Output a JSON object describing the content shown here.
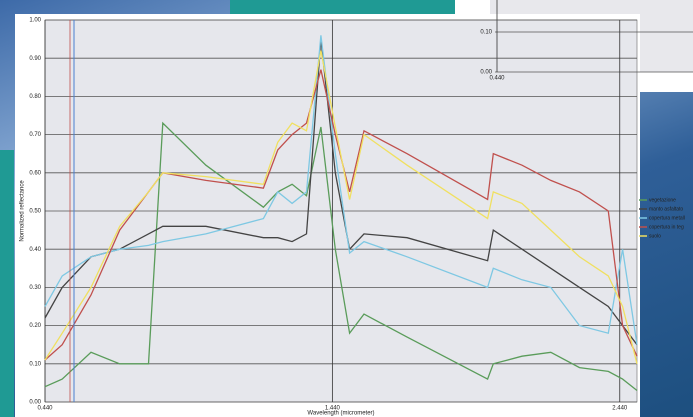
{
  "chart_data": [
    {
      "type": "line",
      "y_label": "Normalized reflectance",
      "x_label": "Wavelength (micrometer)",
      "x": [
        0.44,
        0.5,
        0.6,
        0.7,
        0.8,
        0.85,
        1.0,
        1.2,
        1.25,
        1.3,
        1.35,
        1.4,
        1.45,
        1.5,
        1.55,
        1.7,
        1.98,
        2.0,
        2.1,
        2.2,
        2.3,
        2.4,
        2.45,
        2.5
      ],
      "xlim": [
        0.44,
        2.5
      ],
      "xticks": [
        {
          "value": 0.44,
          "label": "0.440"
        },
        {
          "value": 1.44,
          "label": "1.440"
        },
        {
          "value": 2.44,
          "label": "2.440"
        }
      ],
      "ylim": [
        0,
        1
      ],
      "yticks": [
        {
          "value": 0,
          "label": "0.00"
        },
        {
          "value": 0.1,
          "label": "0.10"
        },
        {
          "value": 0.2,
          "label": "0.20"
        },
        {
          "value": 0.3,
          "label": "0.30"
        },
        {
          "value": 0.4,
          "label": "0.40"
        },
        {
          "value": 0.5,
          "label": "0.50"
        },
        {
          "value": 0.6,
          "label": "0.60"
        },
        {
          "value": 0.7,
          "label": "0.70"
        },
        {
          "value": 0.8,
          "label": "0.80"
        },
        {
          "value": 0.9,
          "label": "0.90"
        },
        {
          "value": 1,
          "label": "1.00"
        }
      ],
      "grid": true,
      "legend": "right",
      "series": [
        {
          "name": "vegetazione",
          "color": "#5a9c5a",
          "values": [
            0.04,
            0.06,
            0.13,
            0.1,
            0.1,
            0.73,
            0.62,
            0.51,
            0.55,
            0.57,
            0.54,
            0.72,
            0.4,
            0.18,
            0.23,
            0.17,
            0.06,
            0.1,
            0.12,
            0.13,
            0.09,
            0.08,
            0.06,
            0.03
          ]
        },
        {
          "name": "manto asfaltato",
          "color": "#444444",
          "values": [
            0.22,
            0.3,
            0.38,
            0.4,
            0.44,
            0.46,
            0.46,
            0.43,
            0.43,
            0.42,
            0.44,
            0.95,
            0.6,
            0.4,
            0.44,
            0.43,
            0.37,
            0.45,
            0.4,
            0.35,
            0.3,
            0.25,
            0.2,
            0.15
          ]
        },
        {
          "name": "copertura metall",
          "color": "#7ec8e3",
          "values": [
            0.25,
            0.33,
            0.38,
            0.4,
            0.41,
            0.42,
            0.44,
            0.48,
            0.55,
            0.52,
            0.55,
            0.96,
            0.65,
            0.39,
            0.42,
            0.38,
            0.3,
            0.35,
            0.32,
            0.3,
            0.2,
            0.18,
            0.4,
            0.15
          ]
        },
        {
          "name": "copertura in teg",
          "color": "#c0504d",
          "values": [
            0.11,
            0.15,
            0.28,
            0.45,
            0.55,
            0.6,
            0.58,
            0.56,
            0.66,
            0.7,
            0.73,
            0.87,
            0.7,
            0.55,
            0.71,
            0.65,
            0.53,
            0.65,
            0.62,
            0.58,
            0.55,
            0.5,
            0.2,
            0.12
          ]
        },
        {
          "name": "suolo",
          "color": "#f0e060",
          "values": [
            0.11,
            0.18,
            0.3,
            0.46,
            0.55,
            0.6,
            0.59,
            0.57,
            0.68,
            0.73,
            0.71,
            0.92,
            0.72,
            0.53,
            0.7,
            0.62,
            0.48,
            0.55,
            0.52,
            0.45,
            0.38,
            0.33,
            0.25,
            0.1
          ]
        }
      ]
    },
    {
      "type": "frame",
      "ylim": [
        0,
        0.1
      ],
      "yticks": [
        {
          "value": 0,
          "label": "0.00"
        },
        {
          "value": 0.1,
          "label": "0.10"
        }
      ],
      "xticks": [
        {
          "value": 0.44,
          "label": "0.440"
        }
      ]
    }
  ]
}
